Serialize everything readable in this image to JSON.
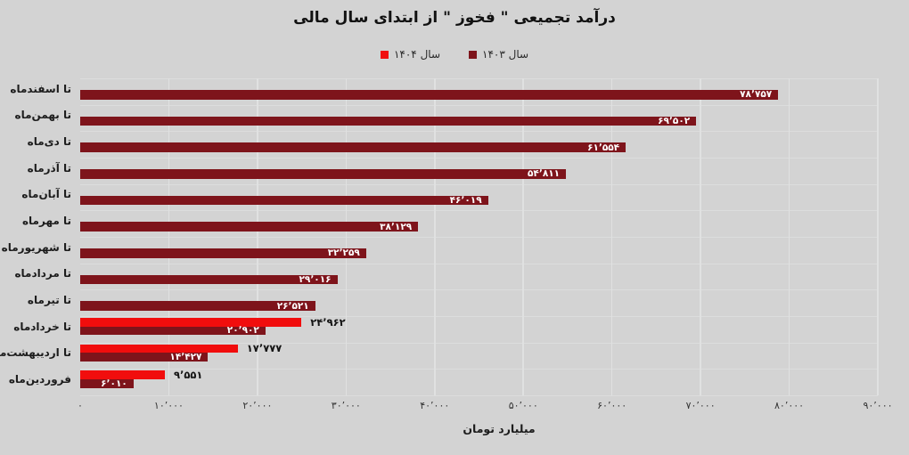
{
  "figure": {
    "background": "#d3d3d3",
    "grid_vertical_color": "#e0e1e1",
    "grid_horizontal_color": "#dcdddd"
  },
  "chart_data": {
    "type": "bar",
    "orientation": "horizontal",
    "title": "درآمد تجمیعی \" فخوز \" از ابتدای سال مالی",
    "xlabel": "میلیارد تومان",
    "xlim": [
      0,
      90000
    ],
    "grid": true,
    "legend_position": "top-center",
    "x_ticks": [
      0,
      10000,
      20000,
      30000,
      40000,
      50000,
      60000,
      70000,
      80000,
      90000
    ],
    "x_tick_labels": [
      "۰",
      "۱۰٬۰۰۰",
      "۲۰٬۰۰۰",
      "۳۰٬۰۰۰",
      "۴۰٬۰۰۰",
      "۵۰٬۰۰۰",
      "۶۰٬۰۰۰",
      "۷۰٬۰۰۰",
      "۸۰٬۰۰۰",
      "۹۰٬۰۰۰"
    ],
    "categories": [
      "تا اسفندماه",
      "تا بهمن‌ماه",
      "تا دی‌ماه",
      "تا آذرماه",
      "تا آبان‌ماه",
      "تا مهرماه",
      "تا شهریورماه",
      "تا مردادماه",
      "تا تیرماه",
      "تا خردادماه",
      "تا اردیبهشت‌ماه",
      "فروردین‌ماه"
    ],
    "series": [
      {
        "name": "سال ۱۴۰۴",
        "color": "#f10d0d",
        "value_label_style": "black-outside-bar",
        "values": [
          null,
          null,
          null,
          null,
          null,
          null,
          null,
          null,
          null,
          24962,
          17777,
          9551
        ],
        "value_labels": [
          "",
          "",
          "",
          "",
          "",
          "",
          "",
          "",
          "",
          "۲۴٬۹۶۲",
          "۱۷٬۷۷۷",
          "۹٬۵۵۱"
        ]
      },
      {
        "name": "سال ۱۴۰۳",
        "color": "#7e141b",
        "value_label_style": "white-inside-bar",
        "values": [
          78757,
          69502,
          61554,
          54811,
          46019,
          38129,
          32259,
          29016,
          26521,
          20902,
          14427,
          6010
        ],
        "value_labels": [
          "۷۸٬۷۵۷",
          "۶۹٬۵۰۲",
          "۶۱٬۵۵۴",
          "۵۴٬۸۱۱",
          "۴۶٬۰۱۹",
          "۳۸٬۱۲۹",
          "۳۲٬۲۵۹",
          "۲۹٬۰۱۶",
          "۲۶٬۵۲۱",
          "۲۰٬۹۰۲",
          "۱۴٬۴۲۷",
          "۶٬۰۱۰"
        ]
      }
    ]
  }
}
